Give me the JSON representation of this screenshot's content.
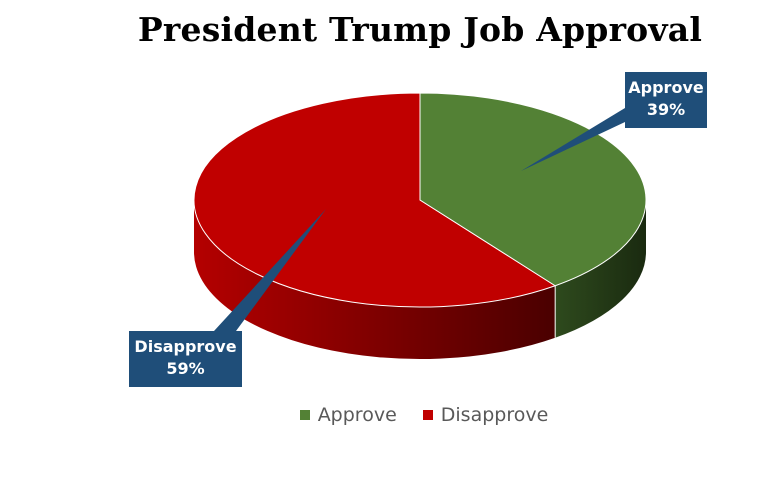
{
  "chart_data": {
    "type": "pie",
    "title": "President Trump Job Approval",
    "categories": [
      "Approve",
      "Disapprove"
    ],
    "values": [
      39,
      59
    ],
    "labels": [
      "39%",
      "59%"
    ],
    "colors": {
      "Approve": "#538135",
      "Disapprove": "#c00000",
      "callout_bg": "#1f4e79"
    },
    "legend_position": "bottom",
    "style": "3d"
  }
}
